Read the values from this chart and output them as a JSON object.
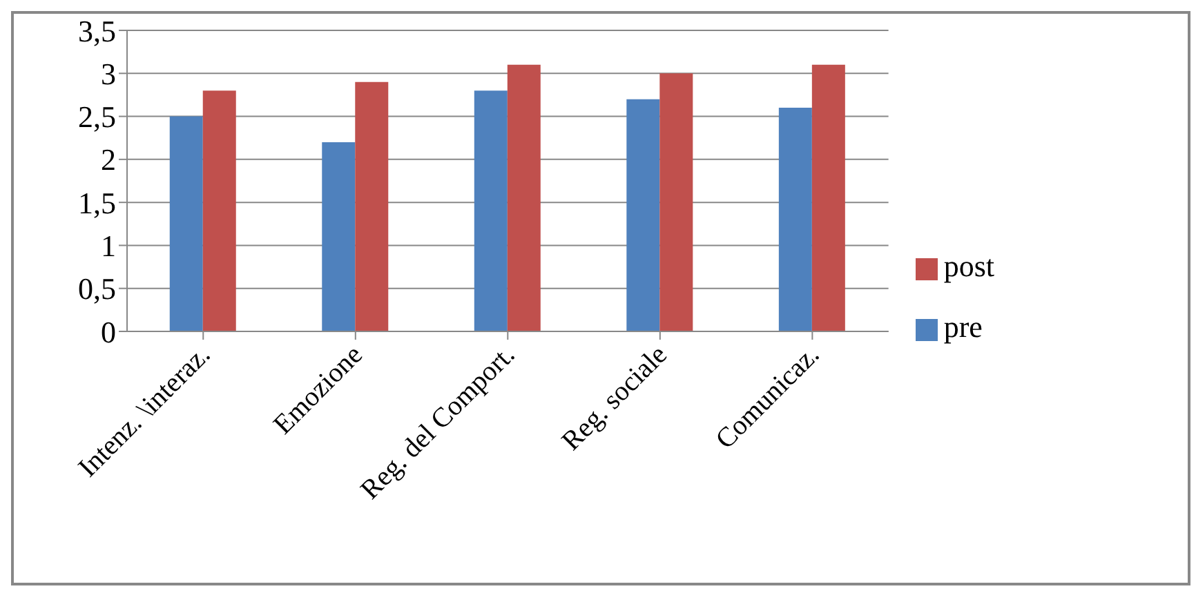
{
  "chart_data": {
    "type": "bar",
    "categories": [
      "Intenz. \\interaz.",
      "Emozione",
      "Reg. del Comport.",
      "Reg. sociale",
      "Comunicaz."
    ],
    "series": [
      {
        "name": "pre",
        "color": "#4f81bd",
        "values": [
          2.5,
          2.2,
          2.8,
          2.7,
          2.6
        ]
      },
      {
        "name": "post",
        "color": "#c0504d",
        "values": [
          2.8,
          2.9,
          3.1,
          3.0,
          3.1
        ]
      }
    ],
    "ylim": [
      0,
      3.5
    ],
    "yticks": [
      0,
      {
        "value": 0.5,
        "label": "0,5"
      },
      1,
      {
        "value": 1.5,
        "label": "1,5"
      },
      2,
      {
        "value": 2.5,
        "label": "2,5"
      },
      3,
      {
        "value": 3.5,
        "label": "3,5"
      }
    ],
    "grid": "y",
    "legend": "right"
  }
}
